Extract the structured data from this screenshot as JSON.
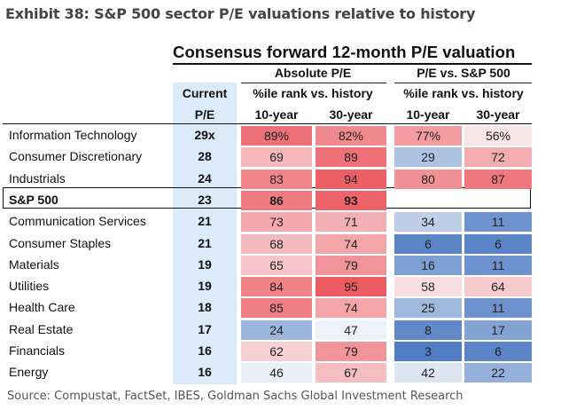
{
  "exhibit_title": "Exhibit 38: S&P 500 sector P/E valuations relative to history",
  "main_title": "Consensus forward 12-month P/E valuation",
  "headers": {
    "absolute": "Absolute P/E",
    "vs_sp": "P/E vs. S&P 500",
    "current_line1": "Current",
    "current_line2": "P/E",
    "pct_rank": "%ile rank vs. history",
    "ten_year": "10-year",
    "thirty_year": "30-year"
  },
  "source": "Source: Compustat, FactSet, IBES, Goldman Sachs Global Investment Research",
  "chart_data": {
    "type": "table",
    "columns": [
      "Current P/E",
      "Absolute P/E 10-year",
      "Absolute P/E 30-year",
      "P/E vs. S&P 500 10-year",
      "P/E vs. S&P 500 30-year"
    ],
    "rows": [
      {
        "name": "Information Technology",
        "current": "29x",
        "abs10": "89%",
        "abs30": "82%",
        "rel10": "77%",
        "rel30": "56%",
        "bold": false
      },
      {
        "name": "Consumer Discretionary",
        "current": "28",
        "abs10": "69",
        "abs30": "89",
        "rel10": "29",
        "rel30": "72",
        "bold": false
      },
      {
        "name": "Industrials",
        "current": "24",
        "abs10": "83",
        "abs30": "94",
        "rel10": "80",
        "rel30": "87",
        "bold": false
      },
      {
        "name": "S&P 500",
        "current": "23",
        "abs10": "86",
        "abs30": "93",
        "rel10": "",
        "rel30": "",
        "bold": true
      },
      {
        "name": "Communication Services",
        "current": "21",
        "abs10": "73",
        "abs30": "71",
        "rel10": "34",
        "rel30": "11",
        "bold": false
      },
      {
        "name": "Consumer Staples",
        "current": "21",
        "abs10": "68",
        "abs30": "74",
        "rel10": "6",
        "rel30": "6",
        "bold": false
      },
      {
        "name": "Materials",
        "current": "19",
        "abs10": "65",
        "abs30": "79",
        "rel10": "16",
        "rel30": "11",
        "bold": false
      },
      {
        "name": "Utilities",
        "current": "19",
        "abs10": "84",
        "abs30": "95",
        "rel10": "58",
        "rel30": "64",
        "bold": false
      },
      {
        "name": "Health Care",
        "current": "18",
        "abs10": "85",
        "abs30": "74",
        "rel10": "25",
        "rel30": "11",
        "bold": false
      },
      {
        "name": "Real Estate",
        "current": "17",
        "abs10": "24",
        "abs30": "47",
        "rel10": "8",
        "rel30": "17",
        "bold": false
      },
      {
        "name": "Financials",
        "current": "16",
        "abs10": "62",
        "abs30": "79",
        "rel10": "3",
        "rel30": "6",
        "bold": false
      },
      {
        "name": "Energy",
        "current": "16",
        "abs10": "46",
        "abs30": "67",
        "rel10": "42",
        "rel30": "22",
        "bold": false
      }
    ]
  }
}
